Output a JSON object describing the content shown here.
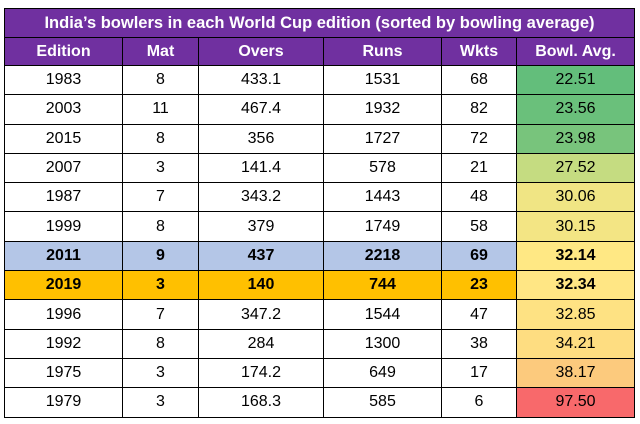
{
  "title": "India’s bowlers in each World Cup edition (sorted by bowling average)",
  "colors": {
    "header_bg": "#7030a0",
    "header_text": "#ffffff",
    "highlight_2011": "#b4c6e7",
    "highlight_2019": "#ffc000"
  },
  "columns": [
    "Edition",
    "Mat",
    "Overs",
    "Runs",
    "Wkts",
    "Bowl. Avg."
  ],
  "rows": [
    {
      "edition": "1983",
      "mat": "8",
      "overs": "433.1",
      "runs": "1531",
      "wkts": "68",
      "avg": "22.51",
      "avg_color": "#63be7b",
      "highlight": ""
    },
    {
      "edition": "2003",
      "mat": "11",
      "overs": "467.4",
      "runs": "1932",
      "wkts": "82",
      "avg": "23.56",
      "avg_color": "#6ac07b",
      "highlight": ""
    },
    {
      "edition": "2015",
      "mat": "8",
      "overs": "356",
      "runs": "1727",
      "wkts": "72",
      "avg": "23.98",
      "avg_color": "#78c47c",
      "highlight": ""
    },
    {
      "edition": "2007",
      "mat": "3",
      "overs": "141.4",
      "runs": "578",
      "wkts": "21",
      "avg": "27.52",
      "avg_color": "#c5dc81",
      "highlight": ""
    },
    {
      "edition": "1987",
      "mat": "7",
      "overs": "343.2",
      "runs": "1443",
      "wkts": "48",
      "avg": "30.06",
      "avg_color": "#f0e584",
      "highlight": ""
    },
    {
      "edition": "1999",
      "mat": "8",
      "overs": "379",
      "runs": "1749",
      "wkts": "58",
      "avg": "30.15",
      "avg_color": "#f3e584",
      "highlight": ""
    },
    {
      "edition": "2011",
      "mat": "9",
      "overs": "437",
      "runs": "2218",
      "wkts": "69",
      "avg": "32.14",
      "avg_color": "#ffe884",
      "highlight": "blue"
    },
    {
      "edition": "2019",
      "mat": "3",
      "overs": "140",
      "runs": "744",
      "wkts": "23",
      "avg": "32.34",
      "avg_color": "#ffe684",
      "highlight": "orange"
    },
    {
      "edition": "1996",
      "mat": "7",
      "overs": "347.2",
      "runs": "1544",
      "wkts": "47",
      "avg": "32.85",
      "avg_color": "#fee283",
      "highlight": ""
    },
    {
      "edition": "1992",
      "mat": "8",
      "overs": "284",
      "runs": "1300",
      "wkts": "38",
      "avg": "34.21",
      "avg_color": "#fedd81",
      "highlight": ""
    },
    {
      "edition": "1975",
      "mat": "3",
      "overs": "174.2",
      "runs": "649",
      "wkts": "17",
      "avg": "38.17",
      "avg_color": "#fcca7d",
      "highlight": ""
    },
    {
      "edition": "1979",
      "mat": "3",
      "overs": "168.3",
      "runs": "585",
      "wkts": "6",
      "avg": "97.50",
      "avg_color": "#f8696b",
      "highlight": ""
    }
  ]
}
